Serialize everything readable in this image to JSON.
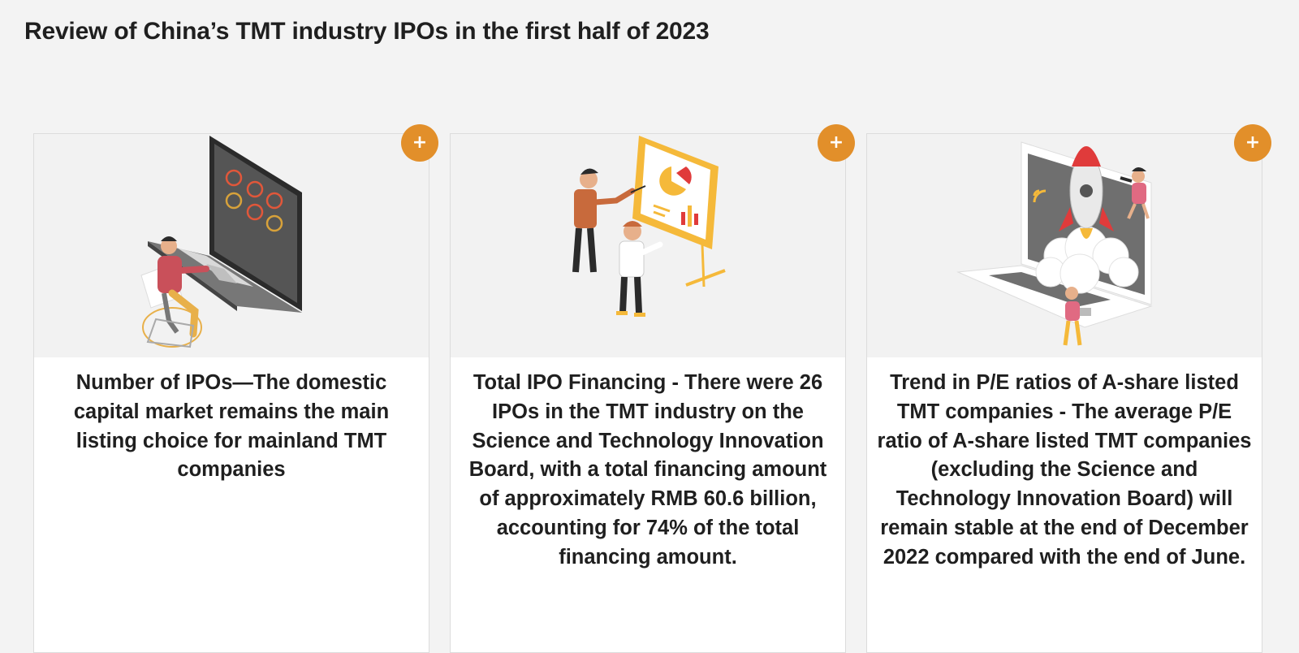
{
  "page": {
    "title": "Review of China’s TMT industry IPOs in the first half of 2023"
  },
  "cards": [
    {
      "illustration": "laptop-analytics-illustration",
      "text": "Number of IPOs—The domestic capital market remains the main listing choice for mainland TMT companies",
      "button_label": "+"
    },
    {
      "illustration": "presentation-board-illustration",
      "text": "Total IPO Financing - There were 26 IPOs in the TMT industry on the Science and Technology Innovation Board, with a total financing amount of approximately RMB 60.6 billion, accounting for 74% of the total financing amount.",
      "button_label": "+"
    },
    {
      "illustration": "rocket-laptop-illustration",
      "text": "Trend in P/E ratios of A-share listed TMT companies - The average P/E ratio of A-share listed TMT companies (excluding the Science and Technology Innovation Board) will remain stable at the end of December 2022 compared with the end of June.",
      "button_label": "+"
    }
  ],
  "colors": {
    "accent": "#e28f2a",
    "background": "#f3f3f3",
    "card": "#ffffff"
  }
}
